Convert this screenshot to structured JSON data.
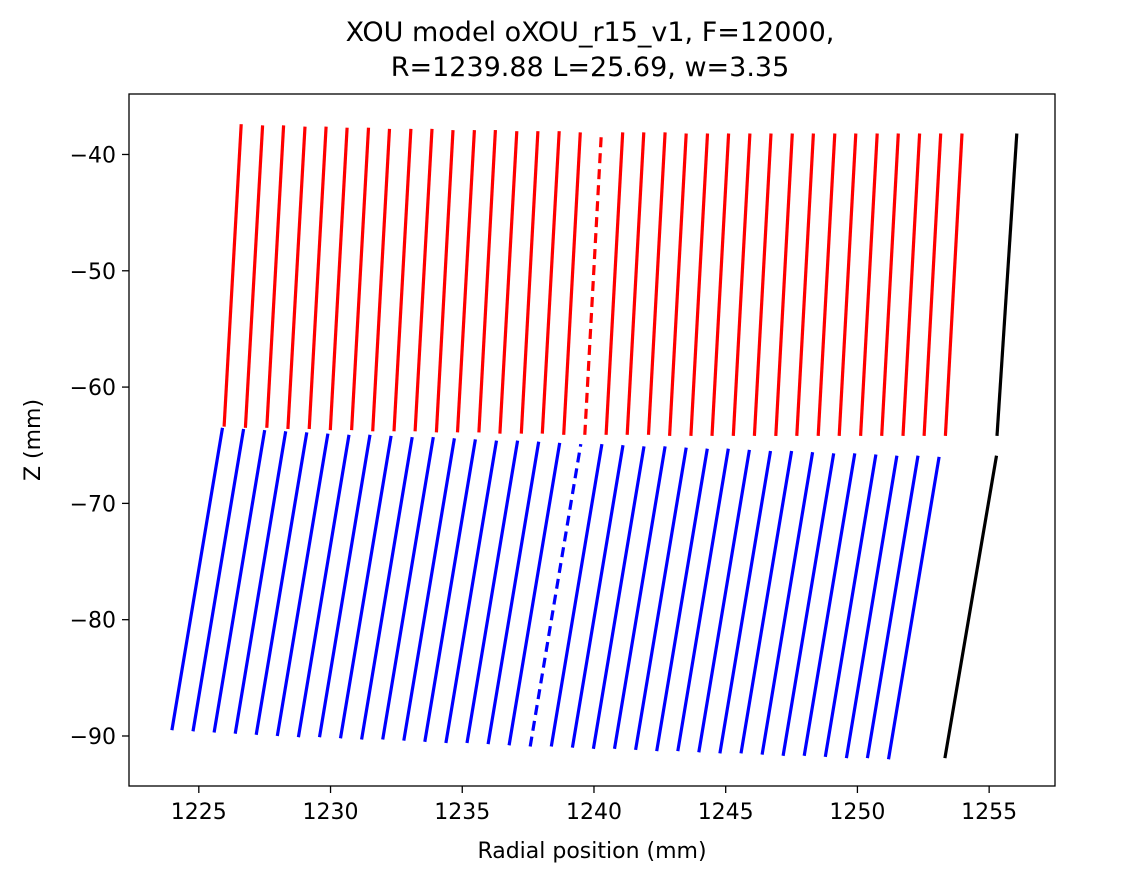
{
  "chart_data": {
    "type": "line",
    "title_lines": [
      "XOU model oXOU_r15_v1, F=12000,",
      "R=1239.88 L=25.69, w=3.35"
    ],
    "xlabel": "Radial position (mm)",
    "ylabel": "Z (mm)",
    "xlim": [
      1222.35,
      1257.5
    ],
    "ylim": [
      -94.3,
      -34.8
    ],
    "xticks": [
      1225,
      1230,
      1235,
      1240,
      1245,
      1250,
      1255
    ],
    "yticks": [
      -40,
      -50,
      -60,
      -70,
      -80,
      -90
    ],
    "grid": false,
    "legend": "none",
    "series_style": {
      "upper": {
        "color": "#ff0000"
      },
      "lower": {
        "color": "#0000ff"
      },
      "outer": {
        "color": "#000000"
      }
    },
    "upper_segments": [
      {
        "x": [
          1225.96,
          1226.61
        ],
        "y": [
          -63.4,
          -37.4
        ],
        "dashed": false
      },
      {
        "x": [
          1226.77,
          1227.42
        ],
        "y": [
          -63.5,
          -37.5
        ],
        "dashed": false
      },
      {
        "x": [
          1227.58,
          1228.22
        ],
        "y": [
          -63.5,
          -37.5
        ],
        "dashed": false
      },
      {
        "x": [
          1228.38,
          1229.03
        ],
        "y": [
          -63.6,
          -37.6
        ],
        "dashed": false
      },
      {
        "x": [
          1229.19,
          1229.83
        ],
        "y": [
          -63.6,
          -37.6
        ],
        "dashed": false
      },
      {
        "x": [
          1229.99,
          1230.63
        ],
        "y": [
          -63.7,
          -37.7
        ],
        "dashed": false
      },
      {
        "x": [
          1230.8,
          1231.44
        ],
        "y": [
          -63.7,
          -37.7
        ],
        "dashed": false
      },
      {
        "x": [
          1231.6,
          1232.24
        ],
        "y": [
          -63.8,
          -37.8
        ],
        "dashed": false
      },
      {
        "x": [
          1232.41,
          1233.05
        ],
        "y": [
          -63.8,
          -37.8
        ],
        "dashed": false
      },
      {
        "x": [
          1233.21,
          1233.85
        ],
        "y": [
          -63.8,
          -37.8
        ],
        "dashed": false
      },
      {
        "x": [
          1234.02,
          1234.65
        ],
        "y": [
          -63.9,
          -37.9
        ],
        "dashed": false
      },
      {
        "x": [
          1234.82,
          1235.46
        ],
        "y": [
          -63.9,
          -37.9
        ],
        "dashed": false
      },
      {
        "x": [
          1235.63,
          1236.26
        ],
        "y": [
          -63.9,
          -37.9
        ],
        "dashed": false
      },
      {
        "x": [
          1236.43,
          1237.07
        ],
        "y": [
          -64.0,
          -38.0
        ],
        "dashed": false
      },
      {
        "x": [
          1237.24,
          1237.87
        ],
        "y": [
          -64.0,
          -38.0
        ],
        "dashed": false
      },
      {
        "x": [
          1238.04,
          1238.68
        ],
        "y": [
          -64.0,
          -38.0
        ],
        "dashed": false
      },
      {
        "x": [
          1238.85,
          1239.48
        ],
        "y": [
          -64.1,
          -38.1
        ],
        "dashed": false
      },
      {
        "x": [
          1239.65,
          1240.28
        ],
        "y": [
          -64.1,
          -38.1
        ],
        "dashed": true
      },
      {
        "x": [
          1240.46,
          1241.09
        ],
        "y": [
          -64.1,
          -38.1
        ],
        "dashed": false
      },
      {
        "x": [
          1241.26,
          1241.89
        ],
        "y": [
          -64.1,
          -38.1
        ],
        "dashed": false
      },
      {
        "x": [
          1242.07,
          1242.7
        ],
        "y": [
          -64.1,
          -38.1
        ],
        "dashed": false
      },
      {
        "x": [
          1242.87,
          1243.5
        ],
        "y": [
          -64.2,
          -38.2
        ],
        "dashed": false
      },
      {
        "x": [
          1243.68,
          1244.31
        ],
        "y": [
          -64.2,
          -38.2
        ],
        "dashed": false
      },
      {
        "x": [
          1244.48,
          1245.11
        ],
        "y": [
          -64.2,
          -38.2
        ],
        "dashed": false
      },
      {
        "x": [
          1245.29,
          1245.92
        ],
        "y": [
          -64.2,
          -38.2
        ],
        "dashed": false
      },
      {
        "x": [
          1246.09,
          1246.72
        ],
        "y": [
          -64.2,
          -38.2
        ],
        "dashed": false
      },
      {
        "x": [
          1246.9,
          1247.53
        ],
        "y": [
          -64.2,
          -38.2
        ],
        "dashed": false
      },
      {
        "x": [
          1247.7,
          1248.33
        ],
        "y": [
          -64.2,
          -38.2
        ],
        "dashed": false
      },
      {
        "x": [
          1248.51,
          1249.14
        ],
        "y": [
          -64.2,
          -38.2
        ],
        "dashed": false
      },
      {
        "x": [
          1249.31,
          1249.94
        ],
        "y": [
          -64.2,
          -38.2
        ],
        "dashed": false
      },
      {
        "x": [
          1250.12,
          1250.75
        ],
        "y": [
          -64.2,
          -38.2
        ],
        "dashed": false
      },
      {
        "x": [
          1250.92,
          1251.55
        ],
        "y": [
          -64.2,
          -38.2
        ],
        "dashed": false
      },
      {
        "x": [
          1251.73,
          1252.36
        ],
        "y": [
          -64.2,
          -38.2
        ],
        "dashed": false
      },
      {
        "x": [
          1252.53,
          1253.16
        ],
        "y": [
          -64.2,
          -38.2
        ],
        "dashed": false
      },
      {
        "x": [
          1253.34,
          1253.97
        ],
        "y": [
          -64.2,
          -38.2
        ],
        "dashed": false
      }
    ],
    "lower_segments": [
      {
        "x": [
          1223.98,
          1225.9
        ],
        "y": [
          -89.5,
          -63.5
        ],
        "dashed": false
      },
      {
        "x": [
          1224.78,
          1226.7
        ],
        "y": [
          -89.6,
          -63.6
        ],
        "dashed": false
      },
      {
        "x": [
          1225.58,
          1227.5
        ],
        "y": [
          -89.7,
          -63.7
        ],
        "dashed": false
      },
      {
        "x": [
          1226.38,
          1228.3
        ],
        "y": [
          -89.8,
          -63.8
        ],
        "dashed": false
      },
      {
        "x": [
          1227.18,
          1229.1
        ],
        "y": [
          -89.9,
          -63.9
        ],
        "dashed": false
      },
      {
        "x": [
          1227.98,
          1229.9
        ],
        "y": [
          -90.0,
          -64.0
        ],
        "dashed": false
      },
      {
        "x": [
          1228.78,
          1230.7
        ],
        "y": [
          -90.1,
          -64.1
        ],
        "dashed": false
      },
      {
        "x": [
          1229.58,
          1231.5
        ],
        "y": [
          -90.1,
          -64.1
        ],
        "dashed": false
      },
      {
        "x": [
          1230.38,
          1232.3
        ],
        "y": [
          -90.2,
          -64.2
        ],
        "dashed": false
      },
      {
        "x": [
          1231.18,
          1233.1
        ],
        "y": [
          -90.3,
          -64.3
        ],
        "dashed": false
      },
      {
        "x": [
          1231.98,
          1233.9
        ],
        "y": [
          -90.3,
          -64.3
        ],
        "dashed": false
      },
      {
        "x": [
          1232.78,
          1234.7
        ],
        "y": [
          -90.4,
          -64.4
        ],
        "dashed": false
      },
      {
        "x": [
          1233.58,
          1235.5
        ],
        "y": [
          -90.5,
          -64.5
        ],
        "dashed": false
      },
      {
        "x": [
          1234.38,
          1236.3
        ],
        "y": [
          -90.6,
          -64.6
        ],
        "dashed": false
      },
      {
        "x": [
          1235.18,
          1237.1
        ],
        "y": [
          -90.6,
          -64.6
        ],
        "dashed": false
      },
      {
        "x": [
          1235.98,
          1237.9
        ],
        "y": [
          -90.7,
          -64.7
        ],
        "dashed": false
      },
      {
        "x": [
          1236.78,
          1238.7
        ],
        "y": [
          -90.8,
          -64.8
        ],
        "dashed": false
      },
      {
        "x": [
          1237.58,
          1239.5
        ],
        "y": [
          -90.9,
          -64.9
        ],
        "dashed": true
      },
      {
        "x": [
          1238.38,
          1240.3
        ],
        "y": [
          -90.9,
          -64.9
        ],
        "dashed": false
      },
      {
        "x": [
          1239.18,
          1241.1
        ],
        "y": [
          -91.0,
          -65.0
        ],
        "dashed": false
      },
      {
        "x": [
          1239.98,
          1241.9
        ],
        "y": [
          -91.1,
          -65.1
        ],
        "dashed": false
      },
      {
        "x": [
          1240.78,
          1242.7
        ],
        "y": [
          -91.1,
          -65.1
        ],
        "dashed": false
      },
      {
        "x": [
          1241.58,
          1243.5
        ],
        "y": [
          -91.2,
          -65.2
        ],
        "dashed": false
      },
      {
        "x": [
          1242.38,
          1244.3
        ],
        "y": [
          -91.3,
          -65.3
        ],
        "dashed": false
      },
      {
        "x": [
          1243.18,
          1245.1
        ],
        "y": [
          -91.3,
          -65.3
        ],
        "dashed": false
      },
      {
        "x": [
          1243.98,
          1245.9
        ],
        "y": [
          -91.4,
          -65.4
        ],
        "dashed": false
      },
      {
        "x": [
          1244.78,
          1246.7
        ],
        "y": [
          -91.5,
          -65.5
        ],
        "dashed": false
      },
      {
        "x": [
          1245.58,
          1247.5
        ],
        "y": [
          -91.5,
          -65.5
        ],
        "dashed": false
      },
      {
        "x": [
          1246.38,
          1248.3
        ],
        "y": [
          -91.6,
          -65.6
        ],
        "dashed": false
      },
      {
        "x": [
          1247.18,
          1249.1
        ],
        "y": [
          -91.7,
          -65.7
        ],
        "dashed": false
      },
      {
        "x": [
          1247.98,
          1249.9
        ],
        "y": [
          -91.7,
          -65.7
        ],
        "dashed": false
      },
      {
        "x": [
          1248.78,
          1250.7
        ],
        "y": [
          -91.8,
          -65.8
        ],
        "dashed": false
      },
      {
        "x": [
          1249.58,
          1251.5
        ],
        "y": [
          -91.9,
          -65.9
        ],
        "dashed": false
      },
      {
        "x": [
          1250.38,
          1252.3
        ],
        "y": [
          -91.9,
          -65.9
        ],
        "dashed": false
      },
      {
        "x": [
          1251.18,
          1253.1
        ],
        "y": [
          -92.0,
          -66.0
        ],
        "dashed": false
      }
    ],
    "outer_segments": [
      {
        "x": [
          1255.3,
          1256.05
        ],
        "y": [
          -64.2,
          -38.2
        ],
        "dashed": false
      },
      {
        "x": [
          1253.32,
          1255.28
        ],
        "y": [
          -91.9,
          -65.9
        ],
        "dashed": false
      }
    ]
  }
}
